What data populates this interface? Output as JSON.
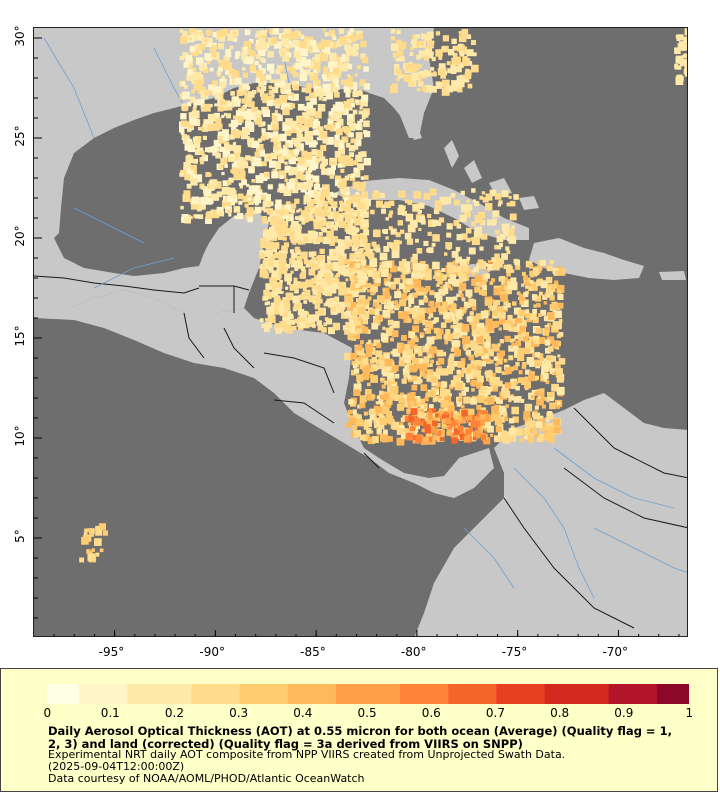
{
  "map": {
    "lon_range": [
      -99,
      -66.5
    ],
    "lat_range": [
      0,
      30.5
    ],
    "lon_ticks": [
      {
        "lon": -95,
        "label": "-95°"
      },
      {
        "lon": -90,
        "label": "-90°"
      },
      {
        "lon": -85,
        "label": "-85°"
      },
      {
        "lon": -80,
        "label": "-80°"
      },
      {
        "lon": -75,
        "label": "-75°"
      },
      {
        "lon": -70,
        "label": "-70°"
      }
    ],
    "lat_ticks": [
      {
        "lat": 5,
        "label": "5°"
      },
      {
        "lat": 10,
        "label": "10°"
      },
      {
        "lat": 15,
        "label": "15°"
      },
      {
        "lat": 20,
        "label": "20°"
      },
      {
        "lat": 25,
        "label": "25°"
      },
      {
        "lat": 30,
        "label": "30°"
      }
    ],
    "colors": {
      "ocean": "#6e6e6e",
      "land": "#c8c8c8",
      "borders": "#1a1a1a",
      "rivers": "#6ea0d2"
    }
  },
  "colorbar": {
    "colors": [
      "#ffffe6",
      "#fff5c8",
      "#ffe9a8",
      "#ffdc8c",
      "#ffcc70",
      "#ffb85a",
      "#ffa048",
      "#ff8438",
      "#f56428",
      "#e64020",
      "#d2281e",
      "#b41428",
      "#8c0828"
    ],
    "ticks": [
      "0",
      "0.1",
      "0.2",
      "0.3",
      "0.4",
      "0.5",
      "0.6",
      "0.7",
      "0.8",
      "0.9",
      "1"
    ]
  },
  "description": {
    "title": "Daily Aerosol Optical Thickness (AOT) at 0.55 micron for both ocean (Average) (Quality flag = 1, 2, 3) and land (corrected) (Quality flag = 3a derived from VIIRS on SNPP)",
    "line1": "Experimental NRT daily AOT composite from NPP VIIRS created from Unprojected Swath Data.",
    "line2": "(2025-09-04T12:00:00Z)",
    "line3": "Data courtesy of NOAA/AOML/PHOD/Atlantic OceanWatch"
  }
}
